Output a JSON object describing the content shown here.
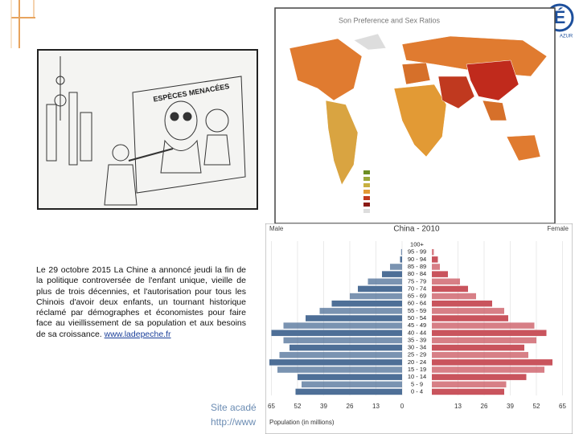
{
  "logo": {
    "letter": "É",
    "caption": "AZUR"
  },
  "cartoon": {
    "sign": "ESPÈCES MENACÉES"
  },
  "map": {
    "title": "Son Preference and Sex Ratios"
  },
  "article": {
    "text": "Le 29 octobre 2015 La Chine a annoncé jeudi la fin de la politique controversée de l'enfant unique, vieille de plus de trois décennies, et l'autorisation pour tous les Chinois d'avoir deux enfants, un tournant historique réclamé par démographes et économistes pour faire face au vieillissement de sa population et aux besoins de sa croissance.",
    "link": "www.ladepeche.fr"
  },
  "footer": {
    "line1": "Site acadé",
    "line2": "http://www"
  },
  "chart_data": {
    "type": "pyramid",
    "title": "China - 2010",
    "xlabel": "Population (in millions)",
    "categories": [
      "100+",
      "95 - 99",
      "90 - 94",
      "85 - 89",
      "80 - 84",
      "75 - 79",
      "70 - 74",
      "65 - 69",
      "60 - 64",
      "55 - 59",
      "50 - 54",
      "45 - 49",
      "40 - 44",
      "35 - 39",
      "30 - 34",
      "25 - 29",
      "20 - 24",
      "15 - 19",
      "10 - 14",
      "5 - 9",
      "0 - 4"
    ],
    "series": [
      {
        "name": "Male",
        "color": "#4e6f97",
        "values": [
          0,
          0.5,
          1,
          6,
          10,
          17,
          22,
          26,
          35,
          41,
          48,
          59,
          65,
          59,
          56,
          61,
          66,
          62,
          52,
          50,
          53
        ]
      },
      {
        "name": "Female",
        "color": "#c9545d",
        "values": [
          0,
          1,
          3,
          4,
          8,
          14,
          18,
          22,
          30,
          36,
          38,
          51,
          57,
          52,
          46,
          48,
          60,
          56,
          47,
          37,
          36
        ]
      }
    ],
    "xlim": [
      -65,
      65
    ],
    "xticks": [
      {
        "value": -65,
        "label": "65"
      },
      {
        "value": -52,
        "label": "52"
      },
      {
        "value": -39,
        "label": "39"
      },
      {
        "value": -26,
        "label": "26"
      },
      {
        "value": -13,
        "label": "13"
      },
      0,
      13,
      26,
      39,
      52,
      65
    ],
    "grid": true
  }
}
